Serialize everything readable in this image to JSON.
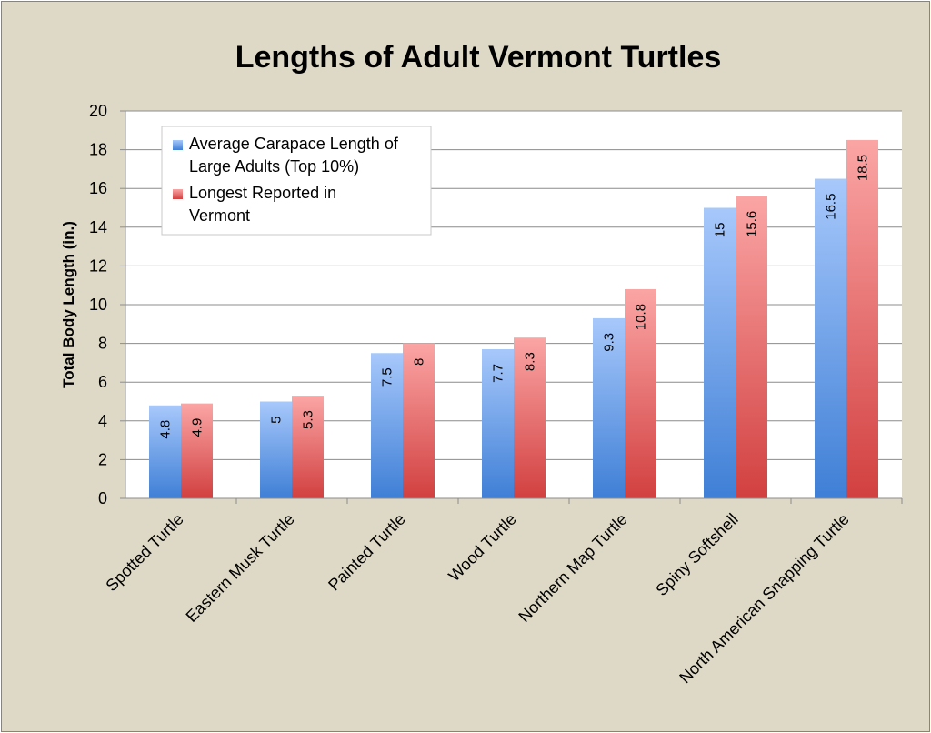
{
  "chart_data": {
    "type": "bar",
    "title": "Lengths of Adult Vermont Turtles",
    "xlabel": "",
    "ylabel": "Total Body Length (in.)",
    "ylim": [
      0,
      20
    ],
    "ytick_step": 2,
    "grid": true,
    "legend_position": "top-left",
    "categories": [
      "Spotted Turtle",
      "Eastern Musk Turtle",
      "Painted Turtle",
      "Wood Turtle",
      "Northern Map Turtle",
      "Spiny Softshell",
      "North American Snapping Turtle"
    ],
    "series": [
      {
        "name": "Average Carapace Length of Large Adults (Top 10%)",
        "legend_lines": [
          "Average Carapace Length of",
          "Large Adults (Top 10%)"
        ],
        "values": [
          4.8,
          5,
          7.5,
          7.7,
          9.3,
          15,
          16.5
        ],
        "labels": [
          "4.8",
          "5",
          "7.5",
          "7.7",
          "9.3",
          "15",
          "16.5"
        ],
        "color_top": "#a7c8fb",
        "color_bottom": "#3f7fd6"
      },
      {
        "name": "Longest Reported in Vermont",
        "legend_lines": [
          "Longest Reported in",
          "Vermont"
        ],
        "values": [
          4.9,
          5.3,
          8,
          8.3,
          10.8,
          15.6,
          18.5
        ],
        "labels": [
          "4.9",
          "5.3",
          "8",
          "8.3",
          "10.8",
          "15.6",
          "18.5"
        ],
        "color_top": "#fba5a5",
        "color_bottom": "#d24040"
      }
    ]
  }
}
